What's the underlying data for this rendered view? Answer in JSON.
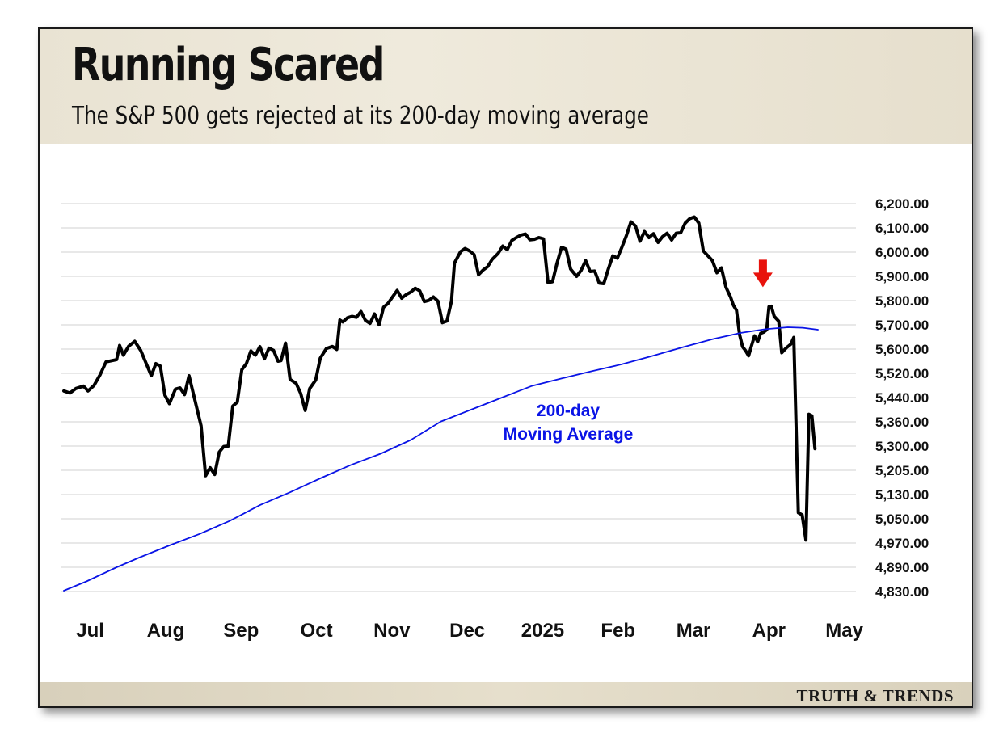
{
  "title": "Running Scared",
  "subtitle": "The S&P 500 gets rejected at its 200-day moving average",
  "brand": "TRUTH & TRENDS",
  "chart_data": {
    "type": "line",
    "x_tick_labels": [
      "Jul",
      "Aug",
      "Sep",
      "Oct",
      "Nov",
      "Dec",
      "2025",
      "Feb",
      "Mar",
      "Apr",
      "May"
    ],
    "y_tick_labels": [
      "6,200.00",
      "6,100.00",
      "6,000.00",
      "5,900.00",
      "5,800.00",
      "5,700.00",
      "5,600.00",
      "5,520.00",
      "5,440.00",
      "5,360.00",
      "5,300.00",
      "5,205.00",
      "5,130.00",
      "5,050.00",
      "4,970.00",
      "4,890.00",
      "4,830.00"
    ],
    "ylim": [
      4830,
      6200
    ],
    "xlim_months": [
      0,
      10.4
    ],
    "grid": true,
    "annotation": {
      "line1": "200-day",
      "line2": "Moving Average",
      "color": "#0a14e6"
    },
    "marker": {
      "description": "red down arrow at rejection point",
      "color": "#e8120c",
      "month_pos": 9.27,
      "value": 5822
    },
    "series": [
      {
        "name": "S&P 500",
        "color": "#000000",
        "points": [
          [
            0,
            5462
          ],
          [
            0.08,
            5455
          ],
          [
            0.16,
            5470
          ],
          [
            0.26,
            5478
          ],
          [
            0.32,
            5462
          ],
          [
            0.4,
            5480
          ],
          [
            0.48,
            5515
          ],
          [
            0.56,
            5558
          ],
          [
            0.7,
            5565
          ],
          [
            0.74,
            5615
          ],
          [
            0.79,
            5580
          ],
          [
            0.86,
            5612
          ],
          [
            0.94,
            5632
          ],
          [
            1.02,
            5595
          ],
          [
            1.1,
            5548
          ],
          [
            1.16,
            5512
          ],
          [
            1.22,
            5552
          ],
          [
            1.28,
            5544
          ],
          [
            1.34,
            5448
          ],
          [
            1.4,
            5420
          ],
          [
            1.48,
            5468
          ],
          [
            1.54,
            5472
          ],
          [
            1.6,
            5450
          ],
          [
            1.66,
            5512
          ],
          [
            1.74,
            5430
          ],
          [
            1.82,
            5350
          ],
          [
            1.88,
            5188
          ],
          [
            1.94,
            5215
          ],
          [
            2.0,
            5192
          ],
          [
            2.06,
            5276
          ],
          [
            2.12,
            5298
          ],
          [
            2.18,
            5300
          ],
          [
            2.24,
            5412
          ],
          [
            2.3,
            5425
          ],
          [
            2.36,
            5532
          ],
          [
            2.42,
            5552
          ],
          [
            2.48,
            5594
          ],
          [
            2.54,
            5580
          ],
          [
            2.6,
            5610
          ],
          [
            2.66,
            5568
          ],
          [
            2.72,
            5604
          ],
          [
            2.78,
            5596
          ],
          [
            2.84,
            5560
          ],
          [
            2.88,
            5562
          ],
          [
            2.94,
            5625
          ],
          [
            3.0,
            5500
          ],
          [
            3.08,
            5487
          ],
          [
            3.14,
            5454
          ],
          [
            3.2,
            5398
          ],
          [
            3.26,
            5470
          ],
          [
            3.34,
            5498
          ],
          [
            3.4,
            5570
          ],
          [
            3.48,
            5602
          ],
          [
            3.56,
            5611
          ],
          [
            3.62,
            5599
          ],
          [
            3.66,
            5720
          ],
          [
            3.7,
            5712
          ],
          [
            3.76,
            5729
          ],
          [
            3.82,
            5735
          ],
          [
            3.88,
            5731
          ],
          [
            3.94,
            5755
          ],
          [
            4.0,
            5718
          ],
          [
            4.06,
            5706
          ],
          [
            4.12,
            5745
          ],
          [
            4.18,
            5700
          ],
          [
            4.24,
            5773
          ],
          [
            4.3,
            5789
          ],
          [
            4.36,
            5816
          ],
          [
            4.42,
            5842
          ],
          [
            4.48,
            5810
          ],
          [
            4.54,
            5825
          ],
          [
            4.6,
            5835
          ],
          [
            4.66,
            5851
          ],
          [
            4.72,
            5840
          ],
          [
            4.78,
            5796
          ],
          [
            4.84,
            5801
          ],
          [
            4.9,
            5815
          ],
          [
            4.96,
            5798
          ],
          [
            5.02,
            5709
          ],
          [
            5.08,
            5716
          ],
          [
            5.14,
            5798
          ],
          [
            5.18,
            5955
          ],
          [
            5.26,
            6002
          ],
          [
            5.32,
            6015
          ],
          [
            5.38,
            6005
          ],
          [
            5.44,
            5990
          ],
          [
            5.5,
            5907
          ],
          [
            5.56,
            5926
          ],
          [
            5.62,
            5940
          ],
          [
            5.68,
            5970
          ],
          [
            5.76,
            5995
          ],
          [
            5.82,
            6025
          ],
          [
            5.88,
            6010
          ],
          [
            5.94,
            6048
          ],
          [
            6.0,
            6060
          ],
          [
            6.06,
            6070
          ],
          [
            6.12,
            6075
          ],
          [
            6.18,
            6051
          ],
          [
            6.24,
            6053
          ],
          [
            6.3,
            6060
          ],
          [
            6.36,
            6055
          ],
          [
            6.42,
            5875
          ],
          [
            6.48,
            5878
          ],
          [
            6.54,
            5955
          ],
          [
            6.6,
            6020
          ],
          [
            6.66,
            6012
          ],
          [
            6.72,
            5930
          ],
          [
            6.8,
            5900
          ],
          [
            6.86,
            5925
          ],
          [
            6.92,
            5965
          ],
          [
            6.98,
            5920
          ],
          [
            7.04,
            5922
          ],
          [
            7.1,
            5872
          ],
          [
            7.16,
            5870
          ],
          [
            7.22,
            5930
          ],
          [
            7.28,
            5985
          ],
          [
            7.34,
            5975
          ],
          [
            7.4,
            6020
          ],
          [
            7.46,
            6068
          ],
          [
            7.52,
            6125
          ],
          [
            7.58,
            6108
          ],
          [
            7.64,
            6045
          ],
          [
            7.7,
            6085
          ],
          [
            7.76,
            6060
          ],
          [
            7.82,
            6076
          ],
          [
            7.88,
            6040
          ],
          [
            7.94,
            6064
          ],
          [
            8.0,
            6078
          ],
          [
            8.06,
            6050
          ],
          [
            8.12,
            6078
          ],
          [
            8.18,
            6080
          ],
          [
            8.24,
            6120
          ],
          [
            8.3,
            6138
          ],
          [
            8.36,
            6145
          ],
          [
            8.42,
            6120
          ],
          [
            8.48,
            6005
          ],
          [
            8.54,
            5985
          ],
          [
            8.6,
            5965
          ],
          [
            8.66,
            5915
          ],
          [
            8.72,
            5935
          ],
          [
            8.78,
            5855
          ],
          [
            8.84,
            5815
          ],
          [
            8.88,
            5780
          ],
          [
            8.92,
            5760
          ],
          [
            8.96,
            5660
          ],
          [
            9.0,
            5610
          ],
          [
            9.04,
            5595
          ],
          [
            9.08,
            5578
          ],
          [
            9.12,
            5615
          ],
          [
            9.16,
            5655
          ],
          [
            9.2,
            5630
          ],
          [
            9.24,
            5665
          ],
          [
            9.28,
            5670
          ],
          [
            9.32,
            5680
          ],
          [
            9.35,
            5775
          ],
          [
            9.38,
            5777
          ],
          [
            9.42,
            5735
          ],
          [
            9.48,
            5715
          ],
          [
            9.52,
            5588
          ],
          [
            9.58,
            5605
          ],
          [
            9.64,
            5620
          ],
          [
            9.68,
            5648
          ],
          [
            9.74,
            5070
          ],
          [
            9.79,
            5063
          ],
          [
            9.84,
            4980
          ],
          [
            9.88,
            5385
          ],
          [
            9.92,
            5380
          ],
          [
            9.96,
            5290
          ]
        ]
      },
      {
        "name": "200-day Moving Average",
        "color": "#0a14e6",
        "points": [
          [
            0,
            4832
          ],
          [
            0.3,
            4855
          ],
          [
            0.7,
            4890
          ],
          [
            1.0,
            4922
          ],
          [
            1.4,
            4962
          ],
          [
            1.8,
            5000
          ],
          [
            2.2,
            5043
          ],
          [
            2.6,
            5095
          ],
          [
            3.0,
            5137
          ],
          [
            3.4,
            5180
          ],
          [
            3.8,
            5225
          ],
          [
            4.2,
            5270
          ],
          [
            4.6,
            5315
          ],
          [
            5.0,
            5361
          ],
          [
            5.4,
            5400
          ],
          [
            5.8,
            5439
          ],
          [
            6.2,
            5478
          ],
          [
            6.6,
            5503
          ],
          [
            7.0,
            5527
          ],
          [
            7.4,
            5550
          ],
          [
            7.8,
            5577
          ],
          [
            8.2,
            5607
          ],
          [
            8.6,
            5641
          ],
          [
            8.98,
            5667
          ],
          [
            9.3,
            5682
          ],
          [
            9.6,
            5690
          ],
          [
            9.8,
            5688
          ],
          [
            10.0,
            5680
          ]
        ]
      }
    ]
  }
}
